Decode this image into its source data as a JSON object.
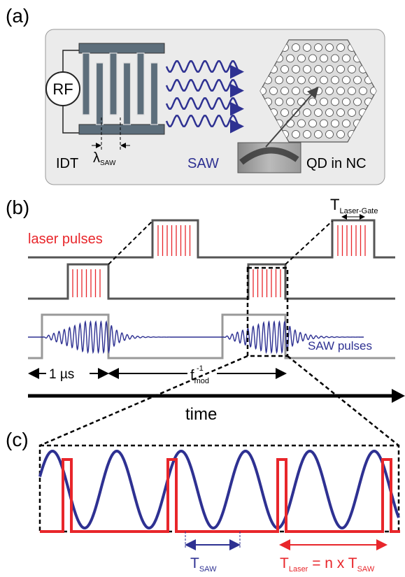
{
  "panel_a": {
    "label": "(a)",
    "rf": "RF",
    "idt": "IDT",
    "lambda": "λ",
    "lambda_sub": "SAW",
    "saw": "SAW",
    "qd": "QD in NC"
  },
  "panel_b": {
    "label": "(b)",
    "laser_pulses": "laser pulses",
    "t_gate": "T",
    "t_gate_sub": "Laser-Gate",
    "saw_pulses": "SAW pulses",
    "one_us": "1 µs",
    "f": "f",
    "f_sub": "mod",
    "f_sup": "-1",
    "time": "time"
  },
  "panel_c": {
    "label": "(c)",
    "t_saw": "T",
    "t_saw_sub": "SAW",
    "t_laser": "T",
    "t_laser_sub": "Laser",
    "eq": " = n x T",
    "eq_sub": "SAW"
  }
}
